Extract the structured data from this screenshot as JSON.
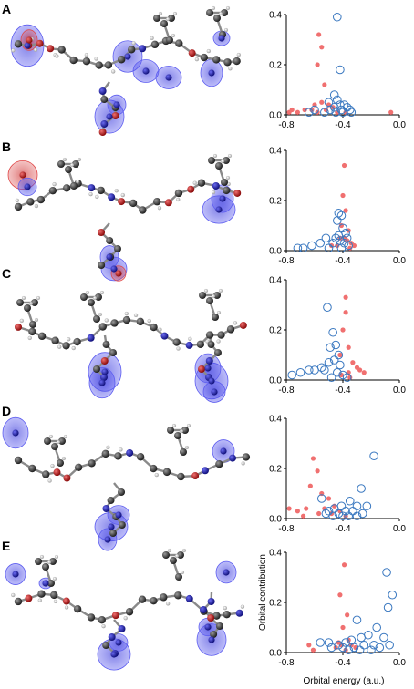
{
  "figure": {
    "panels": [
      "A",
      "B",
      "C",
      "D",
      "E"
    ],
    "xlabel": "Orbital energy (a.u.)",
    "ylabel": "Orbital contribution",
    "x_ticks": [
      "-0.8",
      "-0.4",
      "0.0"
    ],
    "y_ticks": [
      "0.0",
      "0.2",
      "0.4"
    ]
  },
  "colors": {
    "filled_points": "#f07070",
    "open_points": "#3a78c0",
    "atom_carbon": "#3a3a3a",
    "atom_nitrogen": "#2a2ab8",
    "atom_oxygen": "#c81e1e",
    "isosurface_blue": "#5d5df0",
    "isosurface_red": "#e04848"
  },
  "chart_data": [
    {
      "type": "scatter",
      "panel": "A",
      "xlim": [
        -0.8,
        0.0
      ],
      "ylim": [
        0,
        0.4
      ],
      "xlabel": "",
      "ylabel": "",
      "series": [
        {
          "marker": "filled",
          "points": [
            [
              -0.57,
              0.32
            ],
            [
              -0.55,
              0.27
            ],
            [
              -0.58,
              0.2
            ],
            [
              -0.53,
              0.12
            ],
            [
              -0.55,
              0.05
            ],
            [
              -0.6,
              0.04
            ],
            [
              -0.5,
              0.04
            ],
            [
              -0.47,
              0.03
            ],
            [
              -0.62,
              0.02
            ],
            [
              -0.52,
              0.02
            ],
            [
              -0.58,
              0.01
            ],
            [
              -0.44,
              0.01
            ],
            [
              -0.38,
              0.01
            ],
            [
              -0.67,
              0.02
            ],
            [
              -0.72,
              0.01
            ],
            [
              -0.76,
              0.02
            ],
            [
              -0.78,
              0.01
            ],
            [
              -0.06,
              0.01
            ]
          ]
        },
        {
          "marker": "open",
          "points": [
            [
              -0.44,
              0.39
            ],
            [
              -0.42,
              0.18
            ],
            [
              -0.46,
              0.08
            ],
            [
              -0.44,
              0.06
            ],
            [
              -0.5,
              0.05
            ],
            [
              -0.42,
              0.04
            ],
            [
              -0.39,
              0.04
            ],
            [
              -0.37,
              0.03
            ],
            [
              -0.46,
              0.03
            ],
            [
              -0.41,
              0.02
            ],
            [
              -0.35,
              0.02
            ],
            [
              -0.49,
              0.02
            ],
            [
              -0.6,
              0.02
            ],
            [
              -0.64,
              0.01
            ],
            [
              -0.53,
              0.01
            ],
            [
              -0.45,
              0.01
            ],
            [
              -0.4,
              0.01
            ],
            [
              -0.34,
              0.01
            ]
          ]
        }
      ]
    },
    {
      "type": "scatter",
      "panel": "B",
      "xlim": [
        -0.8,
        0.0
      ],
      "ylim": [
        0,
        0.4
      ],
      "xlabel": "",
      "ylabel": "",
      "series": [
        {
          "marker": "filled",
          "points": [
            [
              -0.39,
              0.34
            ],
            [
              -0.4,
              0.22
            ],
            [
              -0.38,
              0.16
            ],
            [
              -0.41,
              0.1
            ],
            [
              -0.36,
              0.08
            ],
            [
              -0.39,
              0.05
            ],
            [
              -0.42,
              0.05
            ],
            [
              -0.37,
              0.04
            ],
            [
              -0.34,
              0.03
            ],
            [
              -0.44,
              0.02
            ],
            [
              -0.32,
              0.02
            ],
            [
              -0.48,
              0.02
            ],
            [
              -0.35,
              0.01
            ]
          ]
        },
        {
          "marker": "open",
          "points": [
            [
              -0.43,
              0.15
            ],
            [
              -0.41,
              0.14
            ],
            [
              -0.44,
              0.12
            ],
            [
              -0.4,
              0.09
            ],
            [
              -0.38,
              0.07
            ],
            [
              -0.43,
              0.06
            ],
            [
              -0.45,
              0.05
            ],
            [
              -0.37,
              0.05
            ],
            [
              -0.42,
              0.04
            ],
            [
              -0.52,
              0.05
            ],
            [
              -0.56,
              0.03
            ],
            [
              -0.47,
              0.03
            ],
            [
              -0.39,
              0.03
            ],
            [
              -0.36,
              0.02
            ],
            [
              -0.62,
              0.02
            ],
            [
              -0.68,
              0.01
            ],
            [
              -0.72,
              0.01
            ],
            [
              -0.5,
              0.01
            ],
            [
              -0.41,
              0.01
            ]
          ]
        }
      ]
    },
    {
      "type": "scatter",
      "panel": "C",
      "xlim": [
        -0.8,
        0.0
      ],
      "ylim": [
        0,
        0.4
      ],
      "xlabel": "",
      "ylabel": "",
      "series": [
        {
          "marker": "filled",
          "points": [
            [
              -0.38,
              0.33
            ],
            [
              -0.38,
              0.27
            ],
            [
              -0.4,
              0.2
            ],
            [
              -0.36,
              0.13
            ],
            [
              -0.42,
              0.1
            ],
            [
              -0.33,
              0.07
            ],
            [
              -0.3,
              0.05
            ],
            [
              -0.28,
              0.04
            ],
            [
              -0.36,
              0.03
            ],
            [
              -0.25,
              0.03
            ],
            [
              -0.41,
              0.02
            ],
            [
              -0.35,
              0.01
            ]
          ]
        },
        {
          "marker": "open",
          "points": [
            [
              -0.51,
              0.29
            ],
            [
              -0.47,
              0.19
            ],
            [
              -0.45,
              0.14
            ],
            [
              -0.49,
              0.13
            ],
            [
              -0.43,
              0.1
            ],
            [
              -0.46,
              0.08
            ],
            [
              -0.5,
              0.07
            ],
            [
              -0.42,
              0.06
            ],
            [
              -0.55,
              0.05
            ],
            [
              -0.6,
              0.04
            ],
            [
              -0.64,
              0.04
            ],
            [
              -0.53,
              0.04
            ],
            [
              -0.7,
              0.03
            ],
            [
              -0.76,
              0.02
            ],
            [
              -0.44,
              0.03
            ],
            [
              -0.4,
              0.02
            ],
            [
              -0.37,
              0.01
            ],
            [
              -0.48,
              0.01
            ]
          ]
        }
      ]
    },
    {
      "type": "scatter",
      "panel": "D",
      "xlim": [
        -0.8,
        0.0
      ],
      "ylim": [
        0,
        0.4
      ],
      "xlabel": "",
      "ylabel": "",
      "series": [
        {
          "marker": "filled",
          "points": [
            [
              -0.61,
              0.24
            ],
            [
              -0.58,
              0.19
            ],
            [
              -0.63,
              0.13
            ],
            [
              -0.55,
              0.1
            ],
            [
              -0.5,
              0.08
            ],
            [
              -0.46,
              0.05
            ],
            [
              -0.53,
              0.04
            ],
            [
              -0.66,
              0.04
            ],
            [
              -0.72,
              0.03
            ],
            [
              -0.78,
              0.04
            ],
            [
              -0.42,
              0.03
            ],
            [
              -0.57,
              0.02
            ],
            [
              -0.48,
              0.02
            ],
            [
              -0.68,
              0.01
            ],
            [
              -0.38,
              0.01
            ]
          ]
        },
        {
          "marker": "open",
          "points": [
            [
              -0.18,
              0.25
            ],
            [
              -0.27,
              0.12
            ],
            [
              -0.35,
              0.07
            ],
            [
              -0.3,
              0.05
            ],
            [
              -0.23,
              0.05
            ],
            [
              -0.41,
              0.05
            ],
            [
              -0.55,
              0.08
            ],
            [
              -0.46,
              0.04
            ],
            [
              -0.38,
              0.03
            ],
            [
              -0.33,
              0.03
            ],
            [
              -0.5,
              0.03
            ],
            [
              -0.26,
              0.02
            ],
            [
              -0.43,
              0.02
            ],
            [
              -0.52,
              0.02
            ],
            [
              -0.36,
              0.01
            ],
            [
              -0.3,
              0.01
            ],
            [
              -0.4,
              0.01
            ],
            [
              -0.47,
              0.01
            ]
          ]
        }
      ]
    },
    {
      "type": "scatter",
      "panel": "E",
      "xlim": [
        -0.8,
        0.0
      ],
      "ylim": [
        0,
        0.4
      ],
      "xlabel": "Orbital energy (a.u.)",
      "ylabel": "Orbital contribution",
      "series": [
        {
          "marker": "filled",
          "points": [
            [
              -0.39,
              0.35
            ],
            [
              -0.42,
              0.23
            ],
            [
              -0.37,
              0.15
            ],
            [
              -0.4,
              0.1
            ],
            [
              -0.36,
              0.05
            ],
            [
              -0.43,
              0.04
            ],
            [
              -0.41,
              0.03
            ],
            [
              -0.34,
              0.03
            ],
            [
              -0.45,
              0.02
            ],
            [
              -0.31,
              0.02
            ],
            [
              -0.64,
              0.03
            ],
            [
              -0.61,
              0.01
            ],
            [
              -0.38,
              0.01
            ]
          ]
        },
        {
          "marker": "open",
          "points": [
            [
              -0.09,
              0.32
            ],
            [
              -0.05,
              0.23
            ],
            [
              -0.08,
              0.18
            ],
            [
              -0.3,
              0.13
            ],
            [
              -0.16,
              0.1
            ],
            [
              -0.22,
              0.07
            ],
            [
              -0.27,
              0.06
            ],
            [
              -0.11,
              0.06
            ],
            [
              -0.34,
              0.05
            ],
            [
              -0.38,
              0.04
            ],
            [
              -0.43,
              0.03
            ],
            [
              -0.18,
              0.03
            ],
            [
              -0.25,
              0.03
            ],
            [
              -0.5,
              0.04
            ],
            [
              -0.56,
              0.04
            ],
            [
              -0.48,
              0.02
            ],
            [
              -0.4,
              0.02
            ],
            [
              -0.32,
              0.02
            ],
            [
              -0.14,
              0.02
            ],
            [
              -0.07,
              0.03
            ],
            [
              -0.2,
              0.01
            ],
            [
              -0.28,
              0.01
            ],
            [
              -0.36,
              0.01
            ]
          ]
        }
      ]
    }
  ]
}
